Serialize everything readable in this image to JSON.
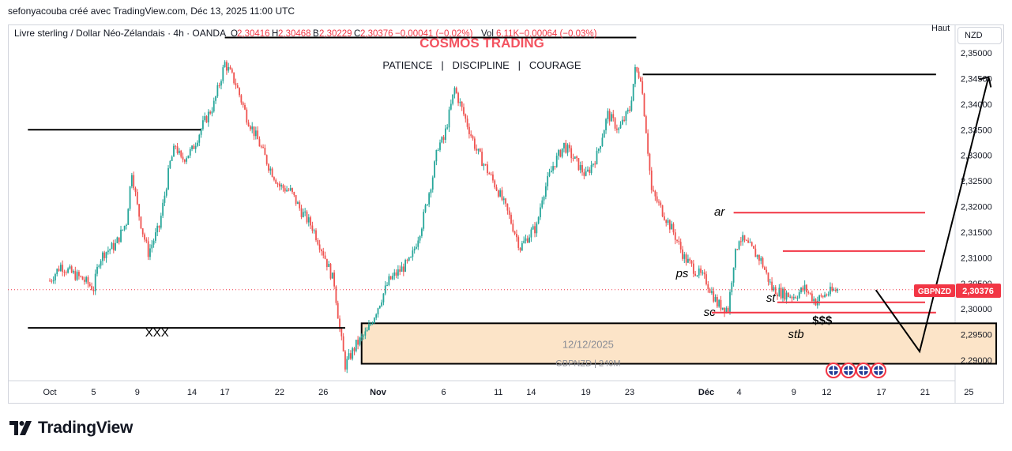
{
  "header": {
    "attribution": "sefonyacouba créé avec TradingView.com, Déc 13, 2025 11:00 UTC",
    "symbol_desc": "Livre sterling / Dollar Néo-Zélandais · 4h · OANDA",
    "ohlc": [
      {
        "label": "O",
        "value": "2,30416"
      },
      {
        "label": "H",
        "value": "2,30468"
      },
      {
        "label": "B",
        "value": "2,30229"
      },
      {
        "label": "C",
        "value": "2,30376"
      }
    ],
    "change": "−0,00041 (−0,02%)",
    "vol_label": "Vol",
    "vol_value": "6,11K",
    "vol_change": "−0,00064 (−0,03%)"
  },
  "watermark": {
    "title": "COSMOS TRADING",
    "subtitle": "PATIENCE   |   DISCIPLINE   |   COURAGE"
  },
  "scale_controls": {
    "auto_label": "Haut",
    "currency": "NZD"
  },
  "price_tag": {
    "symbol": "GBPNZD",
    "value": "2,30376"
  },
  "logo_text": "TradingView",
  "colors": {
    "up": "#26a69a",
    "down": "#ef5350",
    "annotation_red": "#f23645",
    "zone_fill": "#fce4c8",
    "text": "#131722",
    "axis": "#d1d4dc"
  },
  "chart_data": {
    "type": "candlestick",
    "instrument": "GBPNZD",
    "timeframe": "4h",
    "ylim": [
      2.2867,
      2.3564
    ],
    "y_ticks": [
      "2,35000",
      "2,34500",
      "2,34000",
      "2,33500",
      "2,33000",
      "2,32500",
      "2,32000",
      "2,31500",
      "2,31000",
      "2,30500",
      "2,30000",
      "2,29500",
      "2,29000"
    ],
    "y_tick_values": [
      2.35,
      2.345,
      2.34,
      2.335,
      2.33,
      2.325,
      2.32,
      2.315,
      2.31,
      2.305,
      2.3,
      2.295,
      2.29
    ],
    "x_ticks": [
      {
        "label": "Oct",
        "day": 1,
        "bold": false
      },
      {
        "label": "5",
        "day": 5
      },
      {
        "label": "9",
        "day": 9
      },
      {
        "label": "14",
        "day": 14
      },
      {
        "label": "17",
        "day": 17
      },
      {
        "label": "22",
        "day": 22
      },
      {
        "label": "26",
        "day": 26
      },
      {
        "label": "Nov",
        "day": 31,
        "bold": true
      },
      {
        "label": "6",
        "day": 37
      },
      {
        "label": "11",
        "day": 42
      },
      {
        "label": "14",
        "day": 45
      },
      {
        "label": "19",
        "day": 50
      },
      {
        "label": "23",
        "day": 54
      },
      {
        "label": "Déc",
        "day": 61,
        "bold": true
      },
      {
        "label": "4",
        "day": 64
      },
      {
        "label": "9",
        "day": 69
      },
      {
        "label": "12",
        "day": 72
      },
      {
        "label": "17",
        "day": 77
      },
      {
        "label": "21",
        "day": 81
      },
      {
        "label": "25",
        "day": 85
      }
    ],
    "price_path": [
      [
        1,
        2.3055
      ],
      [
        2,
        2.3085
      ],
      [
        3,
        2.307
      ],
      [
        4,
        2.3058
      ],
      [
        5,
        2.304
      ],
      [
        5.5,
        2.3095
      ],
      [
        6,
        2.311
      ],
      [
        7,
        2.3125
      ],
      [
        8,
        2.317
      ],
      [
        8.5,
        2.327
      ],
      [
        9,
        2.32
      ],
      [
        9.5,
        2.315
      ],
      [
        10,
        2.311
      ],
      [
        11,
        2.316
      ],
      [
        12,
        2.3285
      ],
      [
        12.5,
        2.332
      ],
      [
        13,
        2.329
      ],
      [
        14,
        2.331
      ],
      [
        15,
        2.336
      ],
      [
        16,
        2.34
      ],
      [
        17,
        2.348
      ],
      [
        18,
        2.344
      ],
      [
        19,
        2.3375
      ],
      [
        20,
        2.333
      ],
      [
        21,
        2.328
      ],
      [
        22,
        2.324
      ],
      [
        23,
        2.323
      ],
      [
        24,
        2.319
      ],
      [
        25,
        2.316
      ],
      [
        26,
        2.311
      ],
      [
        27,
        2.305
      ],
      [
        27.5,
        2.296
      ],
      [
        28,
        2.289
      ],
      [
        29,
        2.293
      ],
      [
        30,
        2.2955
      ],
      [
        31,
        2.3005
      ],
      [
        32,
        2.3055
      ],
      [
        33,
        2.3075
      ],
      [
        34,
        2.3095
      ],
      [
        35,
        2.3165
      ],
      [
        36,
        2.326
      ],
      [
        36.5,
        2.332
      ],
      [
        37,
        2.333
      ],
      [
        38,
        2.343
      ],
      [
        39,
        2.337
      ],
      [
        40,
        2.331
      ],
      [
        41,
        2.327
      ],
      [
        42,
        2.323
      ],
      [
        43,
        2.318
      ],
      [
        44,
        2.312
      ],
      [
        45,
        2.315
      ],
      [
        45.5,
        2.316
      ],
      [
        46,
        2.322
      ],
      [
        47,
        2.328
      ],
      [
        48,
        2.332
      ],
      [
        49,
        2.329
      ],
      [
        50,
        2.326
      ],
      [
        51,
        2.33
      ],
      [
        52,
        2.338
      ],
      [
        53,
        2.335
      ],
      [
        54,
        2.339
      ],
      [
        54.5,
        2.3465
      ],
      [
        55,
        2.3455
      ],
      [
        55.5,
        2.335
      ],
      [
        56,
        2.323
      ],
      [
        57,
        2.319
      ],
      [
        58,
        2.315
      ],
      [
        59,
        2.31
      ],
      [
        60,
        2.3075
      ],
      [
        61,
        2.3055
      ],
      [
        62,
        2.301
      ],
      [
        63,
        2.3
      ],
      [
        63.5,
        2.309
      ],
      [
        64,
        2.314
      ],
      [
        65,
        2.312
      ],
      [
        66,
        2.3095
      ],
      [
        67,
        2.304
      ],
      [
        68,
        2.303
      ],
      [
        69,
        2.3025
      ],
      [
        70,
        2.304
      ],
      [
        71,
        2.3015
      ],
      [
        72,
        2.303
      ],
      [
        73,
        2.3038
      ]
    ],
    "horizontal_levels": [
      {
        "kind": "black",
        "price": 2.335,
        "from_day": -1,
        "to_day": 14.8
      },
      {
        "kind": "black",
        "price": 2.2963,
        "from_day": -1,
        "to_day": 28
      },
      {
        "kind": "black",
        "price": 2.353,
        "from_day": 17,
        "to_day": 54.6
      },
      {
        "kind": "black",
        "price": 2.3458,
        "from_day": 55.2,
        "to_day": 82
      },
      {
        "kind": "red",
        "price": 2.3188,
        "from_day": 63.5,
        "to_day": 81
      },
      {
        "kind": "red",
        "price": 2.3113,
        "from_day": 68,
        "to_day": 81
      },
      {
        "kind": "red",
        "price": 2.3013,
        "from_day": 67.5,
        "to_day": 81
      },
      {
        "kind": "red",
        "price": 2.2993,
        "from_day": 61.5,
        "to_day": 82
      }
    ],
    "demand_zone": {
      "price_top": 2.2972,
      "price_bottom": 2.2893,
      "from_day": 29.5,
      "to_day": 87.5,
      "label": "12/12/2025",
      "sublabel": "GBPNZD | 240M"
    },
    "projection": [
      [
        76.5,
        2.3037
      ],
      [
        80.5,
        2.2917
      ],
      [
        86.8,
        2.3453
      ]
    ],
    "annotations": [
      {
        "text": "ar",
        "day": 62.2,
        "price": 2.319
      },
      {
        "text": "ps",
        "day": 58.8,
        "price": 2.307
      },
      {
        "text": "st",
        "day": 66.9,
        "price": 2.3022
      },
      {
        "text": "sc",
        "day": 61.3,
        "price": 2.2994
      },
      {
        "text": "$$$",
        "day": 71.6,
        "price": 2.2978
      },
      {
        "text": "stb",
        "day": 69.2,
        "price": 2.2951
      },
      {
        "text": "XXX",
        "day": 10.8,
        "price": 2.2954
      }
    ],
    "news_icon_count": 4,
    "last_price": 2.30376
  }
}
